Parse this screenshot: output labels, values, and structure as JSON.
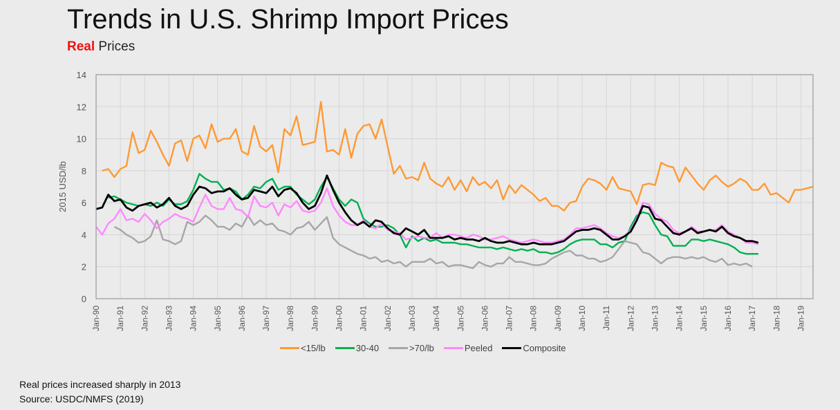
{
  "title": "Trends in U.S. Shrimp Import Prices",
  "subtitle": {
    "highlight": "Real",
    "rest": "Prices",
    "highlight_color": "#ee1111"
  },
  "notes": [
    "Real prices increased sharply in 2013",
    "Source: USDC/NMFS (2019)"
  ],
  "chart_data": {
    "type": "line",
    "title": "Trends in U.S. Shrimp Import Prices",
    "ylabel": "2015 USD/lb",
    "xlabel": "",
    "ylim": [
      0,
      14
    ],
    "yticks": [
      0,
      2,
      4,
      6,
      8,
      10,
      12,
      14
    ],
    "xlim": [
      1990.0,
      2019.5
    ],
    "xtick_labels": [
      "Jan-90",
      "Jan-91",
      "Jan-92",
      "Jan-93",
      "Jan-94",
      "Jan-95",
      "Jan-96",
      "Jan-97",
      "Jan-98",
      "Jan-99",
      "Jan-00",
      "Jan-01",
      "Jan-02",
      "Jan-03",
      "Jan-04",
      "Jan-05",
      "Jan-06",
      "Jan-07",
      "Jan-08",
      "Jan-09",
      "Jan-10",
      "Jan-11",
      "Jan-12",
      "Jan-13",
      "Jan-14",
      "Jan-15",
      "Jan-16",
      "Jan-17",
      "Jan-18",
      "Jan-19"
    ],
    "grid": true,
    "legend_position": "bottom",
    "x_start": 1990.0,
    "x_step": 0.25,
    "series": [
      {
        "name": "<15/lb",
        "color": "#ff9933",
        "values": [
          null,
          8.0,
          8.1,
          7.6,
          8.1,
          8.3,
          10.4,
          9.1,
          9.3,
          10.5,
          9.8,
          9.0,
          8.3,
          9.7,
          9.9,
          8.6,
          10.0,
          10.2,
          9.4,
          10.9,
          9.8,
          10.0,
          10.0,
          10.6,
          9.2,
          9.0,
          10.8,
          9.5,
          9.2,
          9.6,
          7.9,
          10.6,
          10.2,
          11.4,
          9.6,
          9.7,
          9.8,
          12.3,
          9.2,
          9.3,
          9.0,
          10.6,
          8.8,
          10.3,
          10.8,
          10.9,
          10.0,
          11.2,
          9.5,
          7.8,
          8.3,
          7.5,
          7.6,
          7.4,
          8.5,
          7.5,
          7.2,
          7.0,
          7.6,
          6.8,
          7.4,
          6.7,
          7.6,
          7.1,
          7.3,
          6.9,
          7.4,
          6.2,
          7.1,
          6.6,
          7.1,
          6.8,
          6.5,
          6.1,
          6.3,
          5.8,
          5.8,
          5.5,
          6.0,
          6.1,
          7.0,
          7.5,
          7.4,
          7.2,
          6.8,
          7.6,
          6.9,
          6.8,
          6.7,
          5.9,
          7.1,
          7.2,
          7.1,
          8.5,
          8.3,
          8.2,
          7.3,
          8.2,
          7.7,
          7.2,
          6.8,
          7.4,
          7.7,
          7.3,
          7.0,
          7.2,
          7.5,
          7.3,
          6.8,
          6.8,
          7.2,
          6.5,
          6.6,
          6.3,
          6.0,
          6.8,
          6.8,
          6.9,
          7.0
        ]
      },
      {
        "name": "30-40",
        "color": "#00b050",
        "values": [
          null,
          null,
          6.3,
          6.4,
          6.2,
          6.0,
          5.9,
          5.8,
          5.9,
          5.8,
          6.0,
          5.8,
          6.2,
          5.9,
          5.9,
          6.1,
          6.8,
          7.8,
          7.5,
          7.3,
          7.3,
          6.8,
          6.9,
          6.7,
          6.2,
          6.5,
          7.0,
          6.9,
          7.3,
          7.5,
          6.8,
          7.0,
          7.0,
          6.5,
          6.2,
          5.9,
          6.2,
          7.0,
          7.6,
          6.9,
          6.2,
          5.8,
          6.2,
          6.0,
          5.0,
          4.7,
          4.5,
          4.5,
          4.6,
          4.4,
          4.0,
          3.2,
          3.9,
          3.6,
          3.8,
          3.6,
          3.7,
          3.5,
          3.5,
          3.5,
          3.4,
          3.4,
          3.3,
          3.2,
          3.2,
          3.2,
          3.1,
          3.2,
          3.1,
          3.0,
          3.1,
          3.0,
          3.1,
          2.9,
          2.9,
          2.8,
          2.9,
          3.1,
          3.4,
          3.6,
          3.7,
          3.7,
          3.7,
          3.4,
          3.4,
          3.2,
          3.5,
          3.6,
          4.5,
          5.2,
          5.4,
          5.3,
          4.6,
          4.0,
          3.9,
          3.3,
          3.3,
          3.3,
          3.7,
          3.7,
          3.6,
          3.7,
          3.6,
          3.5,
          3.4,
          3.2,
          2.9,
          2.8,
          2.8,
          2.8
        ]
      },
      {
        "name": ">70/lb",
        "color": "#a6a6a6",
        "values": [
          null,
          null,
          null,
          4.5,
          4.3,
          4.0,
          3.8,
          3.5,
          3.6,
          3.9,
          4.9,
          3.7,
          3.6,
          3.4,
          3.6,
          4.8,
          4.6,
          4.8,
          5.2,
          4.9,
          4.5,
          4.5,
          4.3,
          4.7,
          4.5,
          5.2,
          4.6,
          4.9,
          4.6,
          4.7,
          4.3,
          4.2,
          4.0,
          4.4,
          4.5,
          4.8,
          4.3,
          4.7,
          5.1,
          3.8,
          3.4,
          3.2,
          3.0,
          2.8,
          2.7,
          2.5,
          2.6,
          2.3,
          2.4,
          2.2,
          2.3,
          2.0,
          2.3,
          2.3,
          2.3,
          2.5,
          2.2,
          2.3,
          2.0,
          2.1,
          2.1,
          2.0,
          1.9,
          2.3,
          2.1,
          2.0,
          2.2,
          2.2,
          2.6,
          2.3,
          2.3,
          2.2,
          2.1,
          2.1,
          2.2,
          2.5,
          2.7,
          2.9,
          3.0,
          2.7,
          2.7,
          2.5,
          2.5,
          2.3,
          2.4,
          2.6,
          3.1,
          3.6,
          3.5,
          3.4,
          2.9,
          2.8,
          2.5,
          2.2,
          2.5,
          2.6,
          2.6,
          2.5,
          2.6,
          2.5,
          2.6,
          2.4,
          2.3,
          2.5,
          2.1,
          2.2,
          2.1,
          2.2,
          2.0
        ]
      },
      {
        "name": "Peeled",
        "color": "#ff88ff",
        "values": [
          4.5,
          4.0,
          4.7,
          5.0,
          5.6,
          4.9,
          5.0,
          4.8,
          5.3,
          4.9,
          4.4,
          4.8,
          5.0,
          5.3,
          5.1,
          5.0,
          4.8,
          5.7,
          6.5,
          5.8,
          5.6,
          5.6,
          6.3,
          5.6,
          5.5,
          5.1,
          6.4,
          5.8,
          5.7,
          6.0,
          5.2,
          5.9,
          5.7,
          6.1,
          5.5,
          5.4,
          5.5,
          6.0,
          6.9,
          5.8,
          5.2,
          4.8,
          4.6,
          4.6,
          4.9,
          4.5,
          4.4,
          4.7,
          4.3,
          4.2,
          4.1,
          3.7,
          3.8,
          3.9,
          3.8,
          3.8,
          4.1,
          3.8,
          4.0,
          4.0,
          3.9,
          3.8,
          4.0,
          3.9,
          3.7,
          3.7,
          3.8,
          3.9,
          3.7,
          3.6,
          3.5,
          3.6,
          3.7,
          3.6,
          3.5,
          3.5,
          3.6,
          3.7,
          4.0,
          4.4,
          4.4,
          4.5,
          4.6,
          4.4,
          4.1,
          3.9,
          3.8,
          3.9,
          4.3,
          5.0,
          6.0,
          5.9,
          5.3,
          5.0,
          4.8,
          4.3,
          4.1,
          4.2,
          4.5,
          4.2,
          4.2,
          4.3,
          4.3,
          4.6,
          4.2,
          4.0,
          3.8,
          3.5,
          3.5,
          3.4
        ]
      },
      {
        "name": "Composite",
        "color": "#000000",
        "values": [
          5.6,
          5.7,
          6.5,
          6.1,
          6.2,
          5.7,
          5.5,
          5.8,
          5.9,
          6.0,
          5.7,
          5.9,
          6.3,
          5.8,
          5.6,
          5.8,
          6.5,
          7.0,
          6.9,
          6.6,
          6.7,
          6.7,
          6.9,
          6.5,
          6.2,
          6.3,
          6.8,
          6.7,
          6.6,
          7.0,
          6.4,
          6.8,
          6.9,
          6.6,
          6.0,
          5.6,
          5.8,
          6.6,
          7.7,
          6.8,
          6.0,
          5.4,
          4.9,
          4.6,
          4.8,
          4.5,
          4.9,
          4.8,
          4.4,
          4.1,
          4.0,
          4.4,
          4.2,
          4.0,
          4.3,
          3.8,
          3.8,
          3.8,
          3.9,
          3.7,
          3.8,
          3.7,
          3.7,
          3.6,
          3.8,
          3.6,
          3.5,
          3.5,
          3.6,
          3.5,
          3.4,
          3.4,
          3.5,
          3.4,
          3.4,
          3.4,
          3.5,
          3.6,
          3.9,
          4.2,
          4.3,
          4.3,
          4.4,
          4.3,
          4.0,
          3.7,
          3.7,
          3.9,
          4.2,
          4.9,
          5.8,
          5.7,
          5.0,
          4.9,
          4.5,
          4.1,
          4.0,
          4.2,
          4.4,
          4.1,
          4.2,
          4.3,
          4.2,
          4.5,
          4.1,
          3.9,
          3.8,
          3.6,
          3.6,
          3.5
        ]
      }
    ]
  }
}
